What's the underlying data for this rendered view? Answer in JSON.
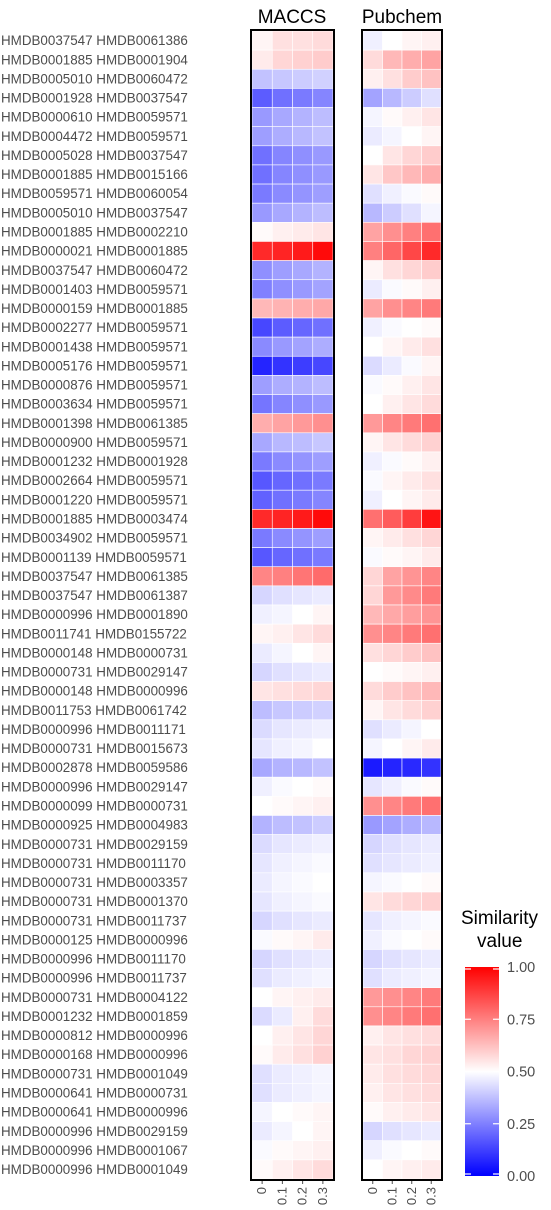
{
  "chart_data": {
    "type": "heatmap",
    "panels": [
      "MACCS",
      "Pubchem"
    ],
    "x": [
      "0",
      "0.1",
      "0.2",
      "0.3"
    ],
    "legend": {
      "title_lines": [
        "Similarity",
        "value"
      ],
      "ticks": [
        "1.00",
        "0.75",
        "0.50",
        "0.25",
        "0.00"
      ],
      "range": [
        0,
        1
      ],
      "colors": {
        "low": "#0000ff",
        "mid": "#ffffff",
        "high": "#ff0000"
      },
      "midpoint": 0.5
    },
    "rows": [
      "HMDB0037547 HMDB0061386",
      "HMDB0001885 HMDB0001904",
      "HMDB0005010 HMDB0060472",
      "HMDB0001928 HMDB0037547",
      "HMDB0000610 HMDB0059571",
      "HMDB0004472 HMDB0059571",
      "HMDB0005028 HMDB0037547",
      "HMDB0001885 HMDB0015166",
      "HMDB0059571 HMDB0060054",
      "HMDB0005010 HMDB0037547",
      "HMDB0001885 HMDB0002210",
      "HMDB0000021 HMDB0001885",
      "HMDB0037547 HMDB0060472",
      "HMDB0001403 HMDB0059571",
      "HMDB0000159 HMDB0001885",
      "HMDB0002277 HMDB0059571",
      "HMDB0001438 HMDB0059571",
      "HMDB0005176 HMDB0059571",
      "HMDB0000876 HMDB0059571",
      "HMDB0003634 HMDB0059571",
      "HMDB0001398 HMDB0061385",
      "HMDB0000900 HMDB0059571",
      "HMDB0001232 HMDB0001928",
      "HMDB0002664 HMDB0059571",
      "HMDB0001220 HMDB0059571",
      "HMDB0001885 HMDB0003474",
      "HMDB0034902 HMDB0059571",
      "HMDB0001139 HMDB0059571",
      "HMDB0037547 HMDB0061385",
      "HMDB0037547 HMDB0061387",
      "HMDB0000996 HMDB0001890",
      "HMDB0011741 HMDB0155722",
      "HMDB0000148 HMDB0000731",
      "HMDB0000731 HMDB0029147",
      "HMDB0000148 HMDB0000996",
      "HMDB0011753 HMDB0061742",
      "HMDB0000996 HMDB0011171",
      "HMDB0000731 HMDB0015673",
      "HMDB0002878 HMDB0059586",
      "HMDB0000996 HMDB0029147",
      "HMDB0000099 HMDB0000731",
      "HMDB0000925 HMDB0004983",
      "HMDB0000731 HMDB0029159",
      "HMDB0000731 HMDB0011170",
      "HMDB0000731 HMDB0003357",
      "HMDB0000731 HMDB0001370",
      "HMDB0000731 HMDB0011737",
      "HMDB0000125 HMDB0000996",
      "HMDB0000996 HMDB0011170",
      "HMDB0000996 HMDB0011737",
      "HMDB0000731 HMDB0004122",
      "HMDB0001232 HMDB0001859",
      "HMDB0000812 HMDB0000996",
      "HMDB0000168 HMDB0000996",
      "HMDB0000731 HMDB0001049",
      "HMDB0000641 HMDB0000731",
      "HMDB0000641 HMDB0000996",
      "HMDB0000996 HMDB0029159",
      "HMDB0000996 HMDB0001067",
      "HMDB0000996 HMDB0001049"
    ],
    "values": {
      "MACCS": [
        [
          0.52,
          0.56,
          0.56,
          0.57
        ],
        [
          0.54,
          0.58,
          0.59,
          0.6
        ],
        [
          0.38,
          0.39,
          0.4,
          0.41
        ],
        [
          0.18,
          0.22,
          0.24,
          0.26
        ],
        [
          0.3,
          0.33,
          0.35,
          0.37
        ],
        [
          0.31,
          0.34,
          0.36,
          0.38
        ],
        [
          0.22,
          0.26,
          0.28,
          0.3
        ],
        [
          0.22,
          0.26,
          0.28,
          0.3
        ],
        [
          0.24,
          0.27,
          0.29,
          0.31
        ],
        [
          0.3,
          0.33,
          0.35,
          0.37
        ],
        [
          0.51,
          0.53,
          0.54,
          0.55
        ],
        [
          0.92,
          0.93,
          0.95,
          0.98
        ],
        [
          0.28,
          0.31,
          0.33,
          0.35
        ],
        [
          0.25,
          0.28,
          0.3,
          0.32
        ],
        [
          0.64,
          0.65,
          0.66,
          0.67
        ],
        [
          0.14,
          0.18,
          0.2,
          0.22
        ],
        [
          0.27,
          0.3,
          0.32,
          0.34
        ],
        [
          0.07,
          0.1,
          0.12,
          0.14
        ],
        [
          0.31,
          0.34,
          0.35,
          0.37
        ],
        [
          0.23,
          0.26,
          0.28,
          0.3
        ],
        [
          0.66,
          0.68,
          0.7,
          0.72
        ],
        [
          0.33,
          0.36,
          0.37,
          0.39
        ],
        [
          0.24,
          0.27,
          0.29,
          0.31
        ],
        [
          0.17,
          0.2,
          0.22,
          0.24
        ],
        [
          0.19,
          0.22,
          0.24,
          0.26
        ],
        [
          0.92,
          0.93,
          0.95,
          0.98
        ],
        [
          0.24,
          0.27,
          0.29,
          0.31
        ],
        [
          0.17,
          0.2,
          0.22,
          0.24
        ],
        [
          0.74,
          0.75,
          0.77,
          0.79
        ],
        [
          0.42,
          0.44,
          0.45,
          0.46
        ],
        [
          0.47,
          0.48,
          0.5,
          0.52
        ],
        [
          0.52,
          0.53,
          0.55,
          0.57
        ],
        [
          0.46,
          0.48,
          0.5,
          0.52
        ],
        [
          0.42,
          0.44,
          0.45,
          0.46
        ],
        [
          0.55,
          0.56,
          0.57,
          0.58
        ],
        [
          0.37,
          0.39,
          0.4,
          0.41
        ],
        [
          0.43,
          0.45,
          0.46,
          0.47
        ],
        [
          0.45,
          0.47,
          0.48,
          0.5
        ],
        [
          0.33,
          0.35,
          0.36,
          0.38
        ],
        [
          0.47,
          0.49,
          0.5,
          0.51
        ],
        [
          0.5,
          0.51,
          0.52,
          0.53
        ],
        [
          0.35,
          0.37,
          0.38,
          0.4
        ],
        [
          0.43,
          0.45,
          0.46,
          0.47
        ],
        [
          0.45,
          0.47,
          0.48,
          0.49
        ],
        [
          0.46,
          0.48,
          0.49,
          0.5
        ],
        [
          0.45,
          0.47,
          0.48,
          0.49
        ],
        [
          0.42,
          0.44,
          0.45,
          0.46
        ],
        [
          0.49,
          0.51,
          0.52,
          0.54
        ],
        [
          0.42,
          0.44,
          0.45,
          0.46
        ],
        [
          0.44,
          0.46,
          0.47,
          0.48
        ],
        [
          0.5,
          0.52,
          0.53,
          0.54
        ],
        [
          0.43,
          0.46,
          0.53,
          0.57
        ],
        [
          0.5,
          0.53,
          0.55,
          0.58
        ],
        [
          0.51,
          0.54,
          0.56,
          0.59
        ],
        [
          0.44,
          0.46,
          0.47,
          0.48
        ],
        [
          0.44,
          0.46,
          0.47,
          0.48
        ],
        [
          0.48,
          0.5,
          0.51,
          0.52
        ],
        [
          0.46,
          0.48,
          0.5,
          0.52
        ],
        [
          0.49,
          0.51,
          0.52,
          0.53
        ],
        [
          0.51,
          0.53,
          0.55,
          0.57
        ]
      ],
      "Pubchem": [
        [
          0.47,
          0.5,
          0.52,
          0.53
        ],
        [
          0.57,
          0.64,
          0.66,
          0.68
        ],
        [
          0.53,
          0.56,
          0.6,
          0.62
        ],
        [
          0.32,
          0.36,
          0.4,
          0.44
        ],
        [
          0.48,
          0.51,
          0.53,
          0.55
        ],
        [
          0.46,
          0.48,
          0.5,
          0.52
        ],
        [
          0.5,
          0.55,
          0.58,
          0.6
        ],
        [
          0.55,
          0.61,
          0.64,
          0.66
        ],
        [
          0.44,
          0.47,
          0.49,
          0.51
        ],
        [
          0.36,
          0.4,
          0.44,
          0.48
        ],
        [
          0.68,
          0.72,
          0.75,
          0.78
        ],
        [
          0.75,
          0.8,
          0.86,
          0.92
        ],
        [
          0.52,
          0.56,
          0.58,
          0.6
        ],
        [
          0.46,
          0.49,
          0.51,
          0.53
        ],
        [
          0.68,
          0.72,
          0.74,
          0.76
        ],
        [
          0.47,
          0.49,
          0.5,
          0.51
        ],
        [
          0.5,
          0.52,
          0.54,
          0.56
        ],
        [
          0.43,
          0.46,
          0.49,
          0.52
        ],
        [
          0.49,
          0.51,
          0.53,
          0.55
        ],
        [
          0.5,
          0.53,
          0.55,
          0.57
        ],
        [
          0.7,
          0.74,
          0.76,
          0.78
        ],
        [
          0.52,
          0.55,
          0.57,
          0.59
        ],
        [
          0.47,
          0.49,
          0.51,
          0.53
        ],
        [
          0.49,
          0.52,
          0.54,
          0.56
        ],
        [
          0.47,
          0.5,
          0.52,
          0.54
        ],
        [
          0.78,
          0.82,
          0.88,
          0.96
        ],
        [
          0.52,
          0.54,
          0.56,
          0.58
        ],
        [
          0.49,
          0.51,
          0.52,
          0.54
        ],
        [
          0.58,
          0.68,
          0.71,
          0.74
        ],
        [
          0.58,
          0.7,
          0.73,
          0.76
        ],
        [
          0.64,
          0.67,
          0.69,
          0.71
        ],
        [
          0.72,
          0.74,
          0.76,
          0.78
        ],
        [
          0.56,
          0.58,
          0.6,
          0.62
        ],
        [
          0.5,
          0.51,
          0.52,
          0.53
        ],
        [
          0.57,
          0.6,
          0.62,
          0.64
        ],
        [
          0.52,
          0.55,
          0.57,
          0.59
        ],
        [
          0.44,
          0.46,
          0.48,
          0.5
        ],
        [
          0.48,
          0.5,
          0.52,
          0.54
        ],
        [
          0.05,
          0.07,
          0.08,
          0.1
        ],
        [
          0.45,
          0.47,
          0.49,
          0.51
        ],
        [
          0.72,
          0.74,
          0.76,
          0.78
        ],
        [
          0.3,
          0.32,
          0.34,
          0.36
        ],
        [
          0.42,
          0.44,
          0.45,
          0.46
        ],
        [
          0.44,
          0.45,
          0.46,
          0.47
        ],
        [
          0.48,
          0.49,
          0.5,
          0.51
        ],
        [
          0.55,
          0.57,
          0.58,
          0.59
        ],
        [
          0.45,
          0.47,
          0.48,
          0.49
        ],
        [
          0.47,
          0.49,
          0.5,
          0.51
        ],
        [
          0.42,
          0.44,
          0.45,
          0.46
        ],
        [
          0.44,
          0.46,
          0.47,
          0.48
        ],
        [
          0.7,
          0.72,
          0.74,
          0.76
        ],
        [
          0.72,
          0.74,
          0.76,
          0.78
        ],
        [
          0.53,
          0.55,
          0.56,
          0.57
        ],
        [
          0.55,
          0.56,
          0.58,
          0.59
        ],
        [
          0.54,
          0.56,
          0.57,
          0.58
        ],
        [
          0.53,
          0.55,
          0.56,
          0.57
        ],
        [
          0.51,
          0.53,
          0.54,
          0.55
        ],
        [
          0.42,
          0.44,
          0.45,
          0.46
        ],
        [
          0.47,
          0.49,
          0.5,
          0.51
        ],
        [
          0.5,
          0.52,
          0.53,
          0.54
        ]
      ]
    }
  }
}
